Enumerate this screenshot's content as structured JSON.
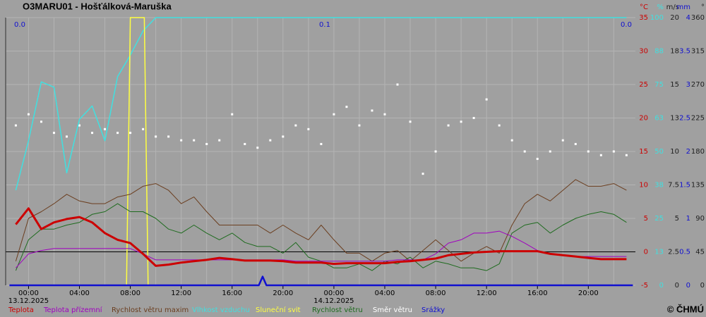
{
  "chart_data": {
    "type": "line",
    "title": "O3MARU01 - Hošťálková-Maruška",
    "copyright": "© ČHMÚ",
    "precip_totals": [
      "0.0",
      "0.1",
      "0.0"
    ],
    "xlim": [
      -1.8,
      47.7
    ],
    "xticks": [
      {
        "value": 0,
        "label": "00:00"
      },
      {
        "value": 4,
        "label": "04:00"
      },
      {
        "value": 8,
        "label": "08:00"
      },
      {
        "value": 12,
        "label": "12:00"
      },
      {
        "value": 16,
        "label": "16:00"
      },
      {
        "value": 20,
        "label": "20:00"
      },
      {
        "value": 24,
        "label": "00:00"
      },
      {
        "value": 28,
        "label": "04:00"
      },
      {
        "value": 32,
        "label": "08:00"
      },
      {
        "value": 36,
        "label": "12:00"
      },
      {
        "value": 40,
        "label": "16:00"
      },
      {
        "value": 44,
        "label": "20:00"
      }
    ],
    "xminorticks": [
      2,
      6,
      10,
      14,
      18,
      22,
      26,
      30,
      34,
      38,
      42,
      46
    ],
    "xdates": [
      {
        "value": 0,
        "label": "13.12.2025"
      },
      {
        "value": 24,
        "label": "14.12.2025"
      }
    ],
    "grid": true,
    "ylabel": "°C",
    "ycolor": "#cc0000",
    "ylim": [
      -5,
      35
    ],
    "yticks": [
      -5,
      0,
      5,
      10,
      15,
      20,
      25,
      30,
      35
    ],
    "y2label": "%",
    "y2color": "#40e0e0",
    "y2lim": [
      0,
      100
    ],
    "y2ticks": [
      0,
      {
        "value": 12.5,
        "label": "13"
      },
      25,
      {
        "value": 37.5,
        "label": "38"
      },
      50,
      {
        "value": 62.5,
        "label": "63"
      },
      75,
      {
        "value": 87.5,
        "label": "88"
      },
      100
    ],
    "y3label": "m/s",
    "y3color": "#202020",
    "y3lim": [
      0,
      20
    ],
    "y3ticks": [
      0,
      2.5,
      5,
      7.5,
      10,
      {
        "value": 12.5,
        "label": "13"
      },
      15,
      {
        "value": 17.5,
        "label": "18"
      },
      20
    ],
    "y4label": "mm",
    "y4color": "#1010d0",
    "y4lim": [
      0,
      4
    ],
    "y4ticks": [
      0,
      0.5,
      1,
      1.5,
      2,
      2.5,
      3,
      3.5,
      4
    ],
    "y5label": "°",
    "y5color": "#202020",
    "y5lim": [
      0,
      360
    ],
    "y5ticks": [
      0,
      45,
      90,
      135,
      180,
      225,
      270,
      315,
      360
    ],
    "x": [
      -1,
      0,
      1,
      2,
      3,
      4,
      5,
      6,
      7,
      8,
      9,
      10,
      11,
      12,
      13,
      14,
      15,
      16,
      17,
      18,
      19,
      20,
      21,
      22,
      23,
      24,
      25,
      26,
      27,
      28,
      29,
      30,
      31,
      32,
      33,
      34,
      35,
      36,
      37,
      38,
      39,
      40,
      41,
      42,
      43,
      44,
      45,
      46,
      47
    ],
    "series": [
      {
        "name": "Teplota",
        "color": "#cc0000",
        "axis": "y",
        "width": 3,
        "values": [
          4.1,
          6.5,
          3.4,
          4.4,
          4.9,
          5.2,
          4.4,
          2.8,
          1.8,
          1.3,
          -0.3,
          -2.1,
          -1.9,
          -1.6,
          -1.4,
          -1.2,
          -0.9,
          -1.1,
          -1.3,
          -1.3,
          -1.3,
          -1.4,
          -1.6,
          -1.6,
          -1.6,
          -1.8,
          -1.7,
          -1.7,
          -1.7,
          -1.7,
          -1.5,
          -1.4,
          -1.2,
          -1.0,
          -0.5,
          -0.3,
          -0.1,
          0,
          0.1,
          0.1,
          0.1,
          0.1,
          -0.3,
          -0.5,
          -0.7,
          -0.9,
          -1.1,
          -1.1,
          -1.1
        ]
      },
      {
        "name": "Teplota přízemní",
        "color": "#a000c0",
        "axis": "y",
        "width": 1,
        "values": [
          -2.4,
          -0.3,
          0.2,
          0.5,
          0.5,
          0.5,
          0.5,
          0.5,
          0.5,
          0.5,
          -0.3,
          -1.2,
          -1.2,
          -1.2,
          -1.2,
          -1.2,
          -1.2,
          -1.2,
          -1.2,
          -1.2,
          -1.2,
          -1.2,
          -1.4,
          -1.4,
          -1.4,
          -1.4,
          -1.4,
          -1.4,
          -1.4,
          -1.4,
          -1.2,
          -1.2,
          -1.2,
          -0.3,
          1.3,
          1.8,
          2.8,
          2.8,
          3.1,
          2.3,
          1.3,
          0.2,
          -0.3,
          -0.5,
          -0.7,
          -0.7,
          -0.7,
          -0.7,
          -0.7
        ]
      },
      {
        "name": "Rychlost větru maxim",
        "color": "#6b3e1f",
        "axis": "y3",
        "width": 1,
        "values": [
          1.8,
          5.0,
          5.5,
          6.1,
          6.8,
          6.3,
          6.1,
          6.1,
          6.6,
          6.8,
          7.4,
          7.6,
          7.1,
          6.1,
          6.6,
          5.5,
          4.5,
          4.5,
          4.5,
          4.5,
          3.9,
          4.5,
          3.9,
          3.4,
          4.5,
          3.4,
          2.4,
          2.4,
          1.8,
          2.4,
          2.6,
          1.8,
          2.6,
          3.4,
          2.6,
          1.8,
          2.4,
          2.9,
          2.4,
          4.5,
          6.1,
          6.8,
          6.3,
          7.1,
          7.9,
          7.4,
          7.4,
          7.6,
          7.1
        ]
      },
      {
        "name": "Vlhkost vzduchu",
        "color": "#40e0e0",
        "axis": "y2",
        "width": 1.5,
        "values": [
          35.5,
          54,
          76,
          74,
          42,
          62,
          67,
          54,
          78,
          86,
          95,
          100,
          100,
          100,
          100,
          100,
          100,
          100,
          100,
          100,
          100,
          100,
          100,
          100,
          100,
          100,
          100,
          100,
          100,
          100,
          100,
          100,
          100,
          100,
          100,
          100,
          100,
          100,
          100,
          100,
          100,
          100,
          100,
          100,
          100,
          100,
          100,
          100,
          100
        ]
      },
      {
        "name": "Sluneční svit",
        "color": "#ffff40",
        "axis": "y2",
        "width": 1.5,
        "x": [
          7.7,
          8.0,
          9.1,
          9.4
        ],
        "values": [
          0,
          100,
          100,
          0
        ]
      },
      {
        "name": "Rychlost větru",
        "color": "#1e6b1e",
        "axis": "y3",
        "width": 1,
        "values": [
          1.1,
          3.4,
          4.2,
          4.2,
          4.5,
          4.7,
          5.3,
          5.5,
          6.1,
          5.5,
          5.5,
          5.0,
          4.2,
          3.9,
          4.5,
          3.9,
          3.4,
          3.9,
          3.2,
          2.9,
          2.9,
          2.4,
          3.2,
          2.1,
          1.8,
          1.3,
          1.3,
          1.6,
          1.1,
          1.8,
          1.6,
          2.1,
          1.3,
          1.8,
          1.6,
          1.3,
          1.3,
          1.1,
          1.6,
          3.9,
          4.5,
          4.7,
          3.9,
          4.5,
          5.0,
          5.3,
          5.5,
          5.3,
          4.7
        ]
      },
      {
        "name": "Směr větru",
        "color": "#ffffff",
        "axis": "y5",
        "marker": "square",
        "values": [
          215,
          230,
          220,
          205,
          200,
          215,
          205,
          210,
          205,
          205,
          210,
          200,
          200,
          195,
          195,
          190,
          195,
          230,
          190,
          185,
          195,
          200,
          215,
          210,
          190,
          230,
          240,
          215,
          235,
          230,
          270,
          220,
          150,
          180,
          215,
          220,
          225,
          250,
          215,
          195,
          180,
          170,
          180,
          195,
          190,
          180,
          175,
          180,
          175
        ]
      },
      {
        "name": "Srážky",
        "color": "#1010d0",
        "axis": "y4",
        "width": 2.5,
        "x": [
          -1.5,
          18.1,
          18.4,
          18.7,
          47.5
        ],
        "values": [
          0,
          0,
          0.13,
          0,
          0
        ]
      }
    ]
  }
}
